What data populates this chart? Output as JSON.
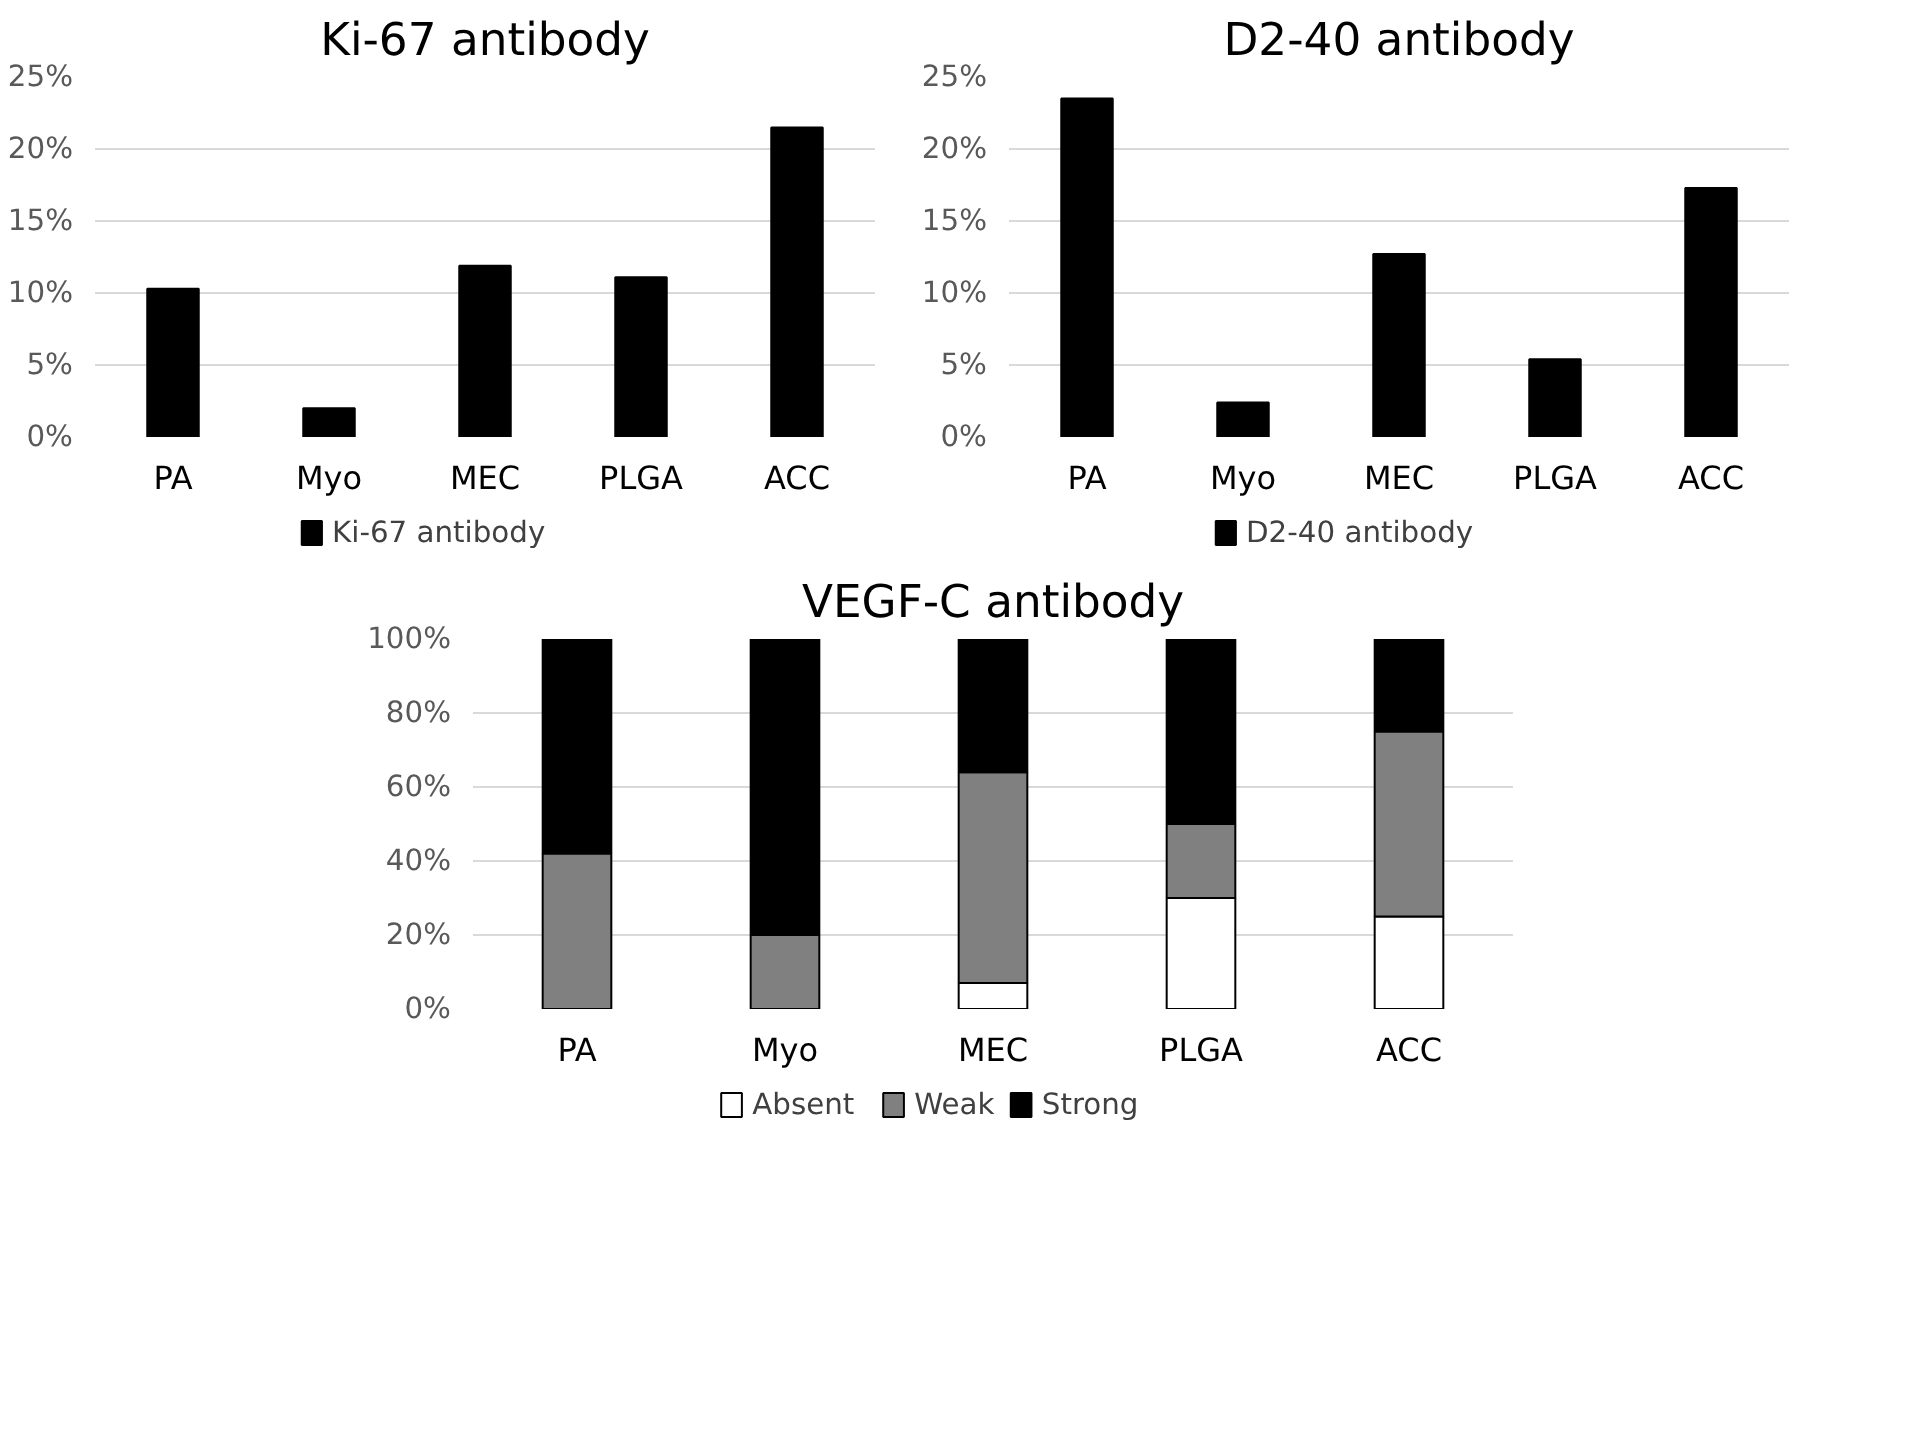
{
  "chart_data": [
    {
      "type": "bar",
      "title": "Ki-67 antibody",
      "categories": [
        "PA",
        "Myo",
        "MEC",
        "PLGA",
        "ACC"
      ],
      "ylim": [
        0,
        25
      ],
      "yticks": [
        {
          "value": 0,
          "label": "0%"
        },
        {
          "value": 5,
          "label": "5%"
        },
        {
          "value": 10,
          "label": "10%"
        },
        {
          "value": 15,
          "label": "15%"
        },
        {
          "value": 20,
          "label": "20%"
        },
        {
          "value": 25,
          "label": "25%"
        }
      ],
      "grid": "y",
      "legend": "bottom",
      "series": [
        {
          "name": "Ki-67 antibody",
          "color": "#000000",
          "values": [
            10.3,
            2.0,
            11.9,
            11.1,
            21.5
          ]
        }
      ]
    },
    {
      "type": "bar",
      "title": "D2-40 antibody",
      "categories": [
        "PA",
        "Myo",
        "MEC",
        "PLGA",
        "ACC"
      ],
      "ylim": [
        0,
        25
      ],
      "yticks": [
        {
          "value": 0,
          "label": "0%"
        },
        {
          "value": 5,
          "label": "5%"
        },
        {
          "value": 10,
          "label": "10%"
        },
        {
          "value": 15,
          "label": "15%"
        },
        {
          "value": 20,
          "label": "20%"
        },
        {
          "value": 25,
          "label": "25%"
        }
      ],
      "grid": "y",
      "legend": "bottom",
      "series": [
        {
          "name": "D2-40 antibody",
          "color": "#000000",
          "values": [
            23.5,
            2.4,
            12.7,
            5.4,
            17.3
          ]
        }
      ]
    },
    {
      "type": "bar",
      "title": "VEGF-C antibody",
      "categories": [
        "PA",
        "Myo",
        "MEC",
        "PLGA",
        "ACC"
      ],
      "ylim": [
        0,
        100
      ],
      "stacked": true,
      "yticks": [
        {
          "value": 0,
          "label": "0%"
        },
        {
          "value": 20,
          "label": "20%"
        },
        {
          "value": 40,
          "label": "40%"
        },
        {
          "value": 60,
          "label": "60%"
        },
        {
          "value": 80,
          "label": "80%"
        },
        {
          "value": 100,
          "label": "100%"
        }
      ],
      "grid": "y",
      "legend": "bottom",
      "series": [
        {
          "name": "Absent",
          "color": "#ffffff",
          "values": [
            0,
            0,
            7,
            30,
            25
          ]
        },
        {
          "name": "Weak",
          "color": "#808080",
          "values": [
            42,
            20,
            57,
            20,
            50
          ]
        },
        {
          "name": "Strong",
          "color": "#000000",
          "values": [
            58,
            80,
            36,
            50,
            25
          ]
        }
      ]
    }
  ]
}
